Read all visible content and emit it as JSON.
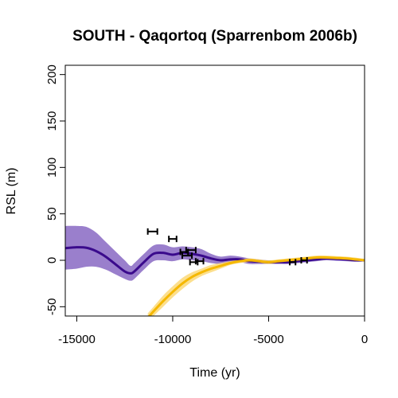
{
  "chart_data": {
    "type": "line",
    "title": "SOUTH - Qaqortoq (Sparrenbom 2006b)",
    "xlabel": "Time (yr)",
    "ylabel": "RSL (m)",
    "xlim": [
      -15600,
      0
    ],
    "ylim": [
      -60,
      210
    ],
    "x_ticks": [
      -15000,
      -10000,
      -5000,
      0
    ],
    "x_tick_labels": [
      "-15000",
      "-10000",
      "-5000",
      "0"
    ],
    "y_ticks": [
      -50,
      0,
      50,
      100,
      150,
      200
    ],
    "y_tick_labels": [
      "-50",
      "0",
      "50",
      "100",
      "150",
      "200"
    ],
    "grid": false,
    "colors": {
      "primary_line": "#3a0a8c",
      "primary_band": "#9a7fcc",
      "secondary_line": "#f5b800",
      "secondary_band": "#fbd979",
      "points": "#000000"
    },
    "series": [
      {
        "role": "primary",
        "x": [
          -15600,
          -15000,
          -14500,
          -14000,
          -13500,
          -13000,
          -12500,
          -12200,
          -12000,
          -11500,
          -11000,
          -10500,
          -10000,
          -9500,
          -9000,
          -8500,
          -8000,
          -7500,
          -7000,
          -6500,
          -6000,
          -5500,
          -5000,
          -4500,
          -4000,
          -3500,
          -3000,
          -2500,
          -2000,
          -1500,
          -1000,
          -500,
          0
        ],
        "y": [
          13,
          14,
          13.5,
          10,
          4,
          -4,
          -12,
          -14,
          -12,
          -2,
          7,
          8,
          6,
          8,
          7,
          5,
          2,
          0,
          1,
          1,
          -1,
          -1.5,
          -2,
          -2,
          -2,
          -1,
          0,
          1,
          2,
          1.5,
          1,
          0,
          0
        ],
        "lower": [
          -10,
          -9,
          -7,
          -7,
          -10,
          -15,
          -20,
          -22,
          -20,
          -10,
          -1,
          0,
          -1,
          1,
          0,
          -1,
          -3,
          -4,
          -3,
          -2,
          -4,
          -4,
          -4,
          -4,
          -4,
          -3,
          -2,
          -1,
          0,
          -0.5,
          -1,
          -1.5,
          -1
        ],
        "upper": [
          37,
          37,
          36,
          30,
          20,
          10,
          0,
          -6,
          -3,
          7,
          16,
          17,
          14,
          15,
          14,
          12,
          7,
          4,
          5,
          4,
          2,
          1,
          0,
          0,
          0,
          1,
          2,
          3,
          4,
          3.5,
          3,
          2,
          1
        ]
      },
      {
        "role": "secondary",
        "x": [
          -11300,
          -11000,
          -10500,
          -10000,
          -9500,
          -9000,
          -8500,
          -8000,
          -7500,
          -7000,
          -6500,
          -6000,
          -5500,
          -5000,
          -4500,
          -4000,
          -3500,
          -3000,
          -2500,
          -2000,
          -1500,
          -1000,
          -500,
          0
        ],
        "y": [
          -62,
          -55,
          -44,
          -34,
          -25,
          -18,
          -13,
          -9,
          -6,
          -3,
          -1,
          0,
          -1,
          -2,
          -1,
          0,
          1,
          2,
          3,
          3,
          2.5,
          2,
          1,
          0
        ],
        "lower": [
          -67,
          -60,
          -50,
          -40,
          -31,
          -23,
          -17,
          -13,
          -9,
          -5,
          -3,
          -2,
          -3,
          -4,
          -3,
          -2,
          -1,
          0,
          1,
          1,
          0.5,
          0,
          -1,
          -1.5
        ],
        "upper": [
          -57,
          -50,
          -38,
          -28,
          -19,
          -13,
          -9,
          -5,
          -3,
          -1,
          1,
          2,
          1,
          0,
          1,
          2,
          3,
          4,
          5,
          5,
          4.5,
          4,
          3,
          1.5
        ]
      }
    ],
    "error_bars": [
      {
        "xmin": -11300,
        "xmax": -10800,
        "y": 31
      },
      {
        "xmin": -10200,
        "xmax": -9800,
        "y": 23
      },
      {
        "xmin": -9600,
        "xmax": -9200,
        "y": 9
      },
      {
        "xmin": -9500,
        "xmax": -9000,
        "y": 5
      },
      {
        "xmin": -9300,
        "xmax": -8800,
        "y": 11
      },
      {
        "xmin": -9100,
        "xmax": -8700,
        "y": -2
      },
      {
        "xmin": -8800,
        "xmax": -8400,
        "y": -1
      },
      {
        "xmin": -3900,
        "xmax": -3600,
        "y": -2
      },
      {
        "xmin": -3300,
        "xmax": -3000,
        "y": 0
      }
    ]
  }
}
